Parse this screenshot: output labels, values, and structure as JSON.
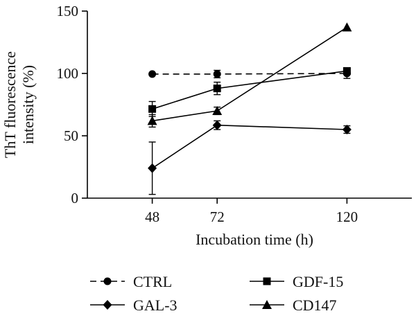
{
  "chart_data": {
    "type": "line",
    "title": "",
    "xlabel": "Incubation time (h)",
    "ylabel_line1": "ThT fluorescence",
    "ylabel_line2": "intensity (%)",
    "x": [
      48,
      72,
      120
    ],
    "x_tick_labels": [
      "48",
      "72",
      "120"
    ],
    "xlim": [
      24,
      144
    ],
    "ylim": [
      0,
      150
    ],
    "y_ticks": [
      0,
      50,
      100,
      150
    ],
    "y_tick_labels": [
      "0",
      "50",
      "100",
      "150"
    ],
    "grid": false,
    "legend_position": "bottom",
    "series": [
      {
        "name": "CTRL",
        "values": [
          99.5,
          99.5,
          100
        ],
        "errors": [
          0,
          3,
          4
        ],
        "marker": "circle",
        "dashed": true
      },
      {
        "name": "GDF-15",
        "values": [
          71.5,
          88,
          102
        ],
        "errors": [
          6,
          5,
          2
        ],
        "marker": "square",
        "dashed": false
      },
      {
        "name": "GAL-3",
        "values": [
          24,
          58.5,
          55
        ],
        "errors": [
          21,
          3.5,
          3
        ],
        "marker": "diamond",
        "dashed": false
      },
      {
        "name": "CD147",
        "values": [
          62,
          70,
          137
        ],
        "errors": [
          5,
          3,
          0
        ],
        "marker": "triangle",
        "dashed": false
      }
    ],
    "legend_order": [
      "CTRL",
      "GDF-15",
      "GAL-3",
      "CD147"
    ]
  }
}
